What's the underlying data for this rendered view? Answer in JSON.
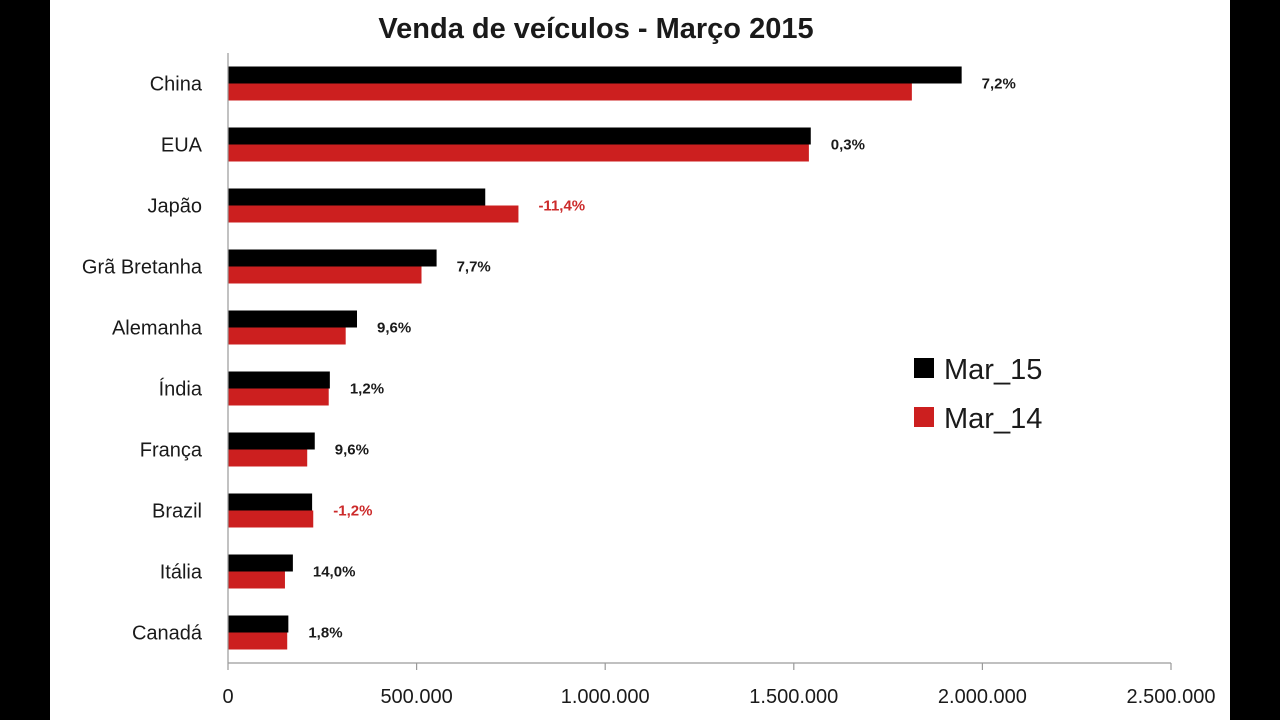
{
  "chart_data": {
    "type": "bar",
    "orientation": "horizontal",
    "title": "Venda de veículos - Março 2015",
    "categories": [
      "China",
      "EUA",
      "Japão",
      "Grã Bretanha",
      "Alemanha",
      "Índia",
      "França",
      "Brazil",
      "Itália",
      "Canadá"
    ],
    "series": [
      {
        "name": "Mar_15",
        "color": "#000000",
        "values": [
          1945000,
          1545000,
          682000,
          553000,
          342000,
          270000,
          230000,
          223000,
          172000,
          160000
        ]
      },
      {
        "name": "Mar_14",
        "color": "#cc1f1f",
        "values": [
          1813000,
          1540000,
          770000,
          513000,
          312000,
          267000,
          210000,
          226000,
          151000,
          157000
        ]
      }
    ],
    "annotations": [
      "7,2%",
      "0,3%",
      "-11,4%",
      "7,7%",
      "9,6%",
      "1,2%",
      "9,6%",
      "-1,2%",
      "14,0%",
      "1,8%"
    ],
    "annotation_colors": [
      "#1a1a1a",
      "#1a1a1a",
      "#cc2a2a",
      "#1a1a1a",
      "#1a1a1a",
      "#1a1a1a",
      "#1a1a1a",
      "#cc2a2a",
      "#1a1a1a",
      "#1a1a1a"
    ],
    "xlim": [
      0,
      2500000
    ],
    "xticks": [
      0,
      500000,
      1000000,
      1500000,
      2000000,
      2500000
    ],
    "xtick_labels": [
      "0",
      "500.000",
      "1.000.000",
      "1.500.000",
      "2.000.000",
      "2.500.000"
    ],
    "xlabel": "",
    "ylabel": "",
    "legend_position": "right",
    "grid": false
  }
}
